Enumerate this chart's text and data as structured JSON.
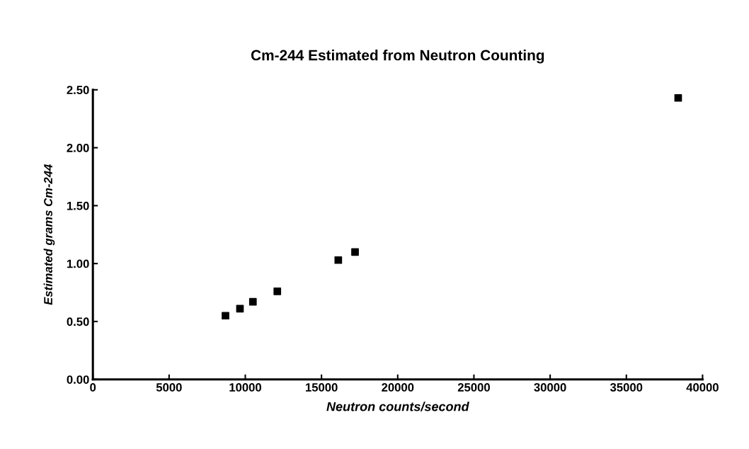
{
  "chart_data": {
    "type": "scatter",
    "title": "Cm-244 Estimated from Neutron Counting",
    "xlabel": "Neutron counts/second",
    "ylabel": "Estimated grams Cm-244",
    "x": [
      8700,
      9650,
      10500,
      12100,
      16100,
      17200,
      38400
    ],
    "series": [
      {
        "color": "#000000",
        "values": [
          0.55,
          0.61,
          0.67,
          0.76,
          1.03,
          1.1,
          2.43
        ]
      }
    ],
    "marker": "square",
    "grid": false,
    "legend": false,
    "xlim": [
      0,
      40000
    ],
    "xticks": [
      0,
      5000,
      10000,
      15000,
      20000,
      25000,
      30000,
      35000,
      40000
    ],
    "ylim": [
      0,
      2.5
    ],
    "yticks": [
      {
        "value": 0,
        "label": "0.00"
      },
      {
        "value": 0.5,
        "label": "0.50"
      },
      {
        "value": 1,
        "label": "1.00"
      },
      {
        "value": 1.5,
        "label": "1.50"
      },
      {
        "value": 2,
        "label": "2.00"
      },
      {
        "value": 2.5,
        "label": "2.50"
      }
    ]
  }
}
